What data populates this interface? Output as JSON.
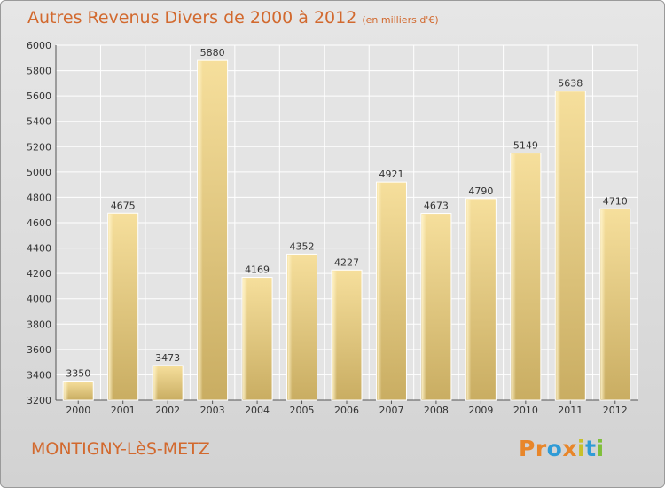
{
  "header": {
    "title": "Autres Revenus Divers de 2000 à 2012",
    "subtitle": "(en milliers d'€)"
  },
  "footer": {
    "place": "MONTIGNY-LèS-METZ",
    "logo_text": "Proxiti",
    "logo_colors": [
      "#e8862a",
      "#e8862a",
      "#2f9bd6",
      "#e8862a",
      "#c8c02a",
      "#2f9bd6",
      "#7fbf3a"
    ]
  },
  "chart_data": {
    "type": "bar",
    "title": "Autres Revenus Divers de 2000 à 2012",
    "subtitle": "(en milliers d'€)",
    "xlabel": "",
    "ylabel": "",
    "categories": [
      "2000",
      "2001",
      "2002",
      "2003",
      "2004",
      "2005",
      "2006",
      "2007",
      "2008",
      "2009",
      "2010",
      "2011",
      "2012"
    ],
    "values": [
      3350,
      4675,
      3473,
      5880,
      4169,
      4352,
      4227,
      4921,
      4673,
      4790,
      5149,
      5638,
      4710
    ],
    "ylim": [
      3200,
      6000
    ],
    "yticks": [
      3200,
      3400,
      3600,
      3800,
      4000,
      4200,
      4400,
      4600,
      4800,
      5000,
      5200,
      5400,
      5600,
      5800,
      6000
    ],
    "grid": true,
    "bar_color": "#e8cf86",
    "legend": "none"
  }
}
